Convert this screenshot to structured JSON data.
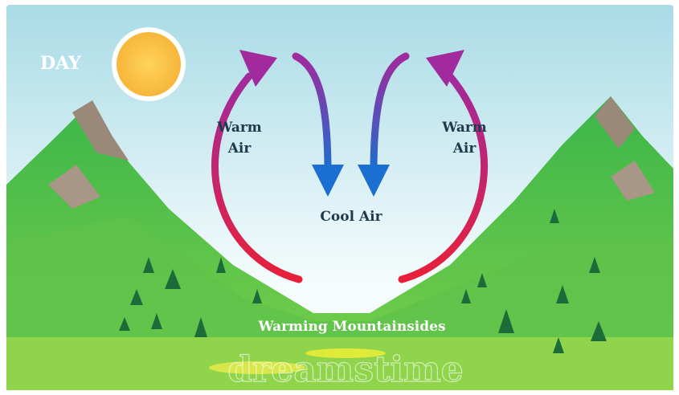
{
  "header": {
    "title": "DAY"
  },
  "labels": {
    "warm_left": [
      "Warm",
      "Air"
    ],
    "warm_right": [
      "Warm",
      "Air"
    ],
    "cool": "Cool Air",
    "ground": "Warming Mountainsides",
    "watermark": "dreamstime"
  }
}
